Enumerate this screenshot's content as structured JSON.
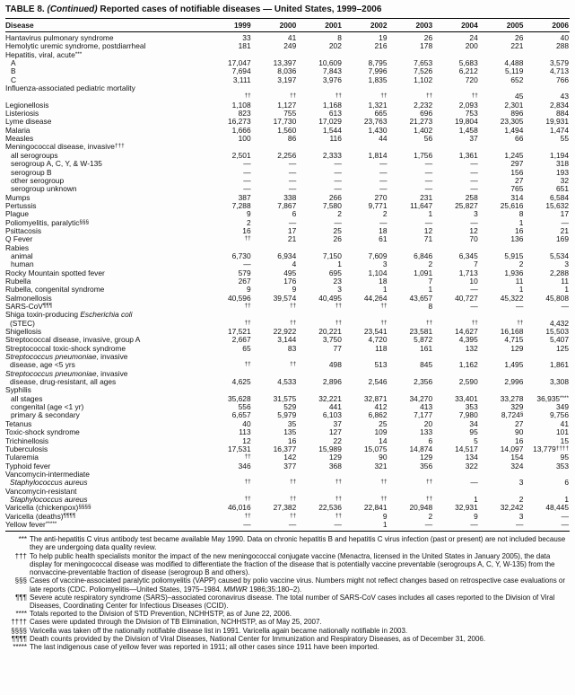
{
  "title": {
    "table_label": "TABLE 8.",
    "continued": "(Continued)",
    "text": "Reported cases of notifiable diseases — United States, 1999–2006"
  },
  "columns": [
    "Disease",
    "1999",
    "2000",
    "2001",
    "2002",
    "2003",
    "2004",
    "2005",
    "2006"
  ],
  "rows": [
    {
      "label": "Hantavirus pulmonary syndrome",
      "values": [
        "33",
        "41",
        "8",
        "19",
        "26",
        "24",
        "26",
        "40"
      ]
    },
    {
      "label": "Hemolytic uremic syndrome, postdiarrheal",
      "values": [
        "181",
        "249",
        "202",
        "216",
        "178",
        "200",
        "221",
        "288"
      ]
    },
    {
      "label": "Hepatitis, viral, acute",
      "sup": "***",
      "section": true
    },
    {
      "label": "A",
      "indent": 1,
      "values": [
        "17,047",
        "13,397",
        "10,609",
        "8,795",
        "7,653",
        "5,683",
        "4,488",
        "3,579"
      ]
    },
    {
      "label": "B",
      "indent": 1,
      "values": [
        "7,694",
        "8,036",
        "7,843",
        "7,996",
        "7,526",
        "6,212",
        "5,119",
        "4,713"
      ]
    },
    {
      "label": "C",
      "indent": 1,
      "values": [
        "3,111",
        "3,197",
        "3,976",
        "1,835",
        "1,102",
        "720",
        "652",
        "766"
      ]
    },
    {
      "label": "Influenza-associated pediatric mortality",
      "label2": "",
      "values": [
        "††",
        "††",
        "††",
        "††",
        "††",
        "††",
        "45",
        "43"
      ]
    },
    {
      "label": "Legionellosis",
      "values": [
        "1,108",
        "1,127",
        "1,168",
        "1,321",
        "2,232",
        "2,093",
        "2,301",
        "2,834"
      ]
    },
    {
      "label": "Listeriosis",
      "values": [
        "823",
        "755",
        "613",
        "665",
        "696",
        "753",
        "896",
        "884"
      ]
    },
    {
      "label": "Lyme disease",
      "values": [
        "16,273",
        "17,730",
        "17,029",
        "23,763",
        "21,273",
        "19,804",
        "23,305",
        "19,931"
      ]
    },
    {
      "label": "Malaria",
      "values": [
        "1,666",
        "1,560",
        "1,544",
        "1,430",
        "1,402",
        "1,458",
        "1,494",
        "1,474"
      ]
    },
    {
      "label": "Measles",
      "values": [
        "100",
        "86",
        "116",
        "44",
        "56",
        "37",
        "66",
        "55"
      ]
    },
    {
      "label": "Meningococcal disease, invasive",
      "sup": "†††",
      "section": true
    },
    {
      "label": "all serogroups",
      "indent": 1,
      "values": [
        "2,501",
        "2,256",
        "2,333",
        "1,814",
        "1,756",
        "1,361",
        "1,245",
        "1,194"
      ]
    },
    {
      "label": "serogroup A, C, Y, & W-135",
      "indent": 1,
      "values": [
        "—",
        "—",
        "—",
        "—",
        "—",
        "—",
        "297",
        "318"
      ]
    },
    {
      "label": "serogroup B",
      "indent": 1,
      "values": [
        "—",
        "—",
        "—",
        "—",
        "—",
        "—",
        "156",
        "193"
      ]
    },
    {
      "label": "other serogroup",
      "indent": 1,
      "values": [
        "—",
        "—",
        "—",
        "—",
        "—",
        "—",
        "27",
        "32"
      ]
    },
    {
      "label": "serogroup unknown",
      "indent": 1,
      "values": [
        "—",
        "—",
        "—",
        "—",
        "—",
        "—",
        "765",
        "651"
      ]
    },
    {
      "label": "Mumps",
      "values": [
        "387",
        "338",
        "266",
        "270",
        "231",
        "258",
        "314",
        "6,584"
      ]
    },
    {
      "label": "Pertussis",
      "values": [
        "7,288",
        "7,867",
        "7,580",
        "9,771",
        "11,647",
        "25,827",
        "25,616",
        "15,632"
      ]
    },
    {
      "label": "Plague",
      "values": [
        "9",
        "6",
        "2",
        "2",
        "1",
        "3",
        "8",
        "17"
      ]
    },
    {
      "label": "Poliomyelitis, paralytic",
      "sup": "§§§",
      "values": [
        "2",
        "—",
        "—",
        "—",
        "—",
        "—",
        "1",
        "—"
      ]
    },
    {
      "label": "Psittacosis",
      "values": [
        "16",
        "17",
        "25",
        "18",
        "12",
        "12",
        "16",
        "21"
      ]
    },
    {
      "label": "Q Fever",
      "values": [
        "††",
        "21",
        "26",
        "61",
        "71",
        "70",
        "136",
        "169"
      ]
    },
    {
      "label": "Rabies",
      "section": true
    },
    {
      "label": "animal",
      "indent": 1,
      "values": [
        "6,730",
        "6,934",
        "7,150",
        "7,609",
        "6,846",
        "6,345",
        "5,915",
        "5,534"
      ]
    },
    {
      "label": "human",
      "indent": 1,
      "values": [
        "—",
        "4",
        "1",
        "3",
        "2",
        "7",
        "2",
        "3"
      ]
    },
    {
      "label": "Rocky Mountain spotted fever",
      "values": [
        "579",
        "495",
        "695",
        "1,104",
        "1,091",
        "1,713",
        "1,936",
        "2,288"
      ]
    },
    {
      "label": "Rubella",
      "values": [
        "267",
        "176",
        "23",
        "18",
        "7",
        "10",
        "11",
        "11"
      ]
    },
    {
      "label": "Rubella, congenital syndrome",
      "values": [
        "9",
        "9",
        "3",
        "1",
        "1",
        "—",
        "1",
        "1"
      ]
    },
    {
      "label": "Salmonellosis",
      "values": [
        "40,596",
        "39,574",
        "40,495",
        "44,264",
        "43,657",
        "40,727",
        "45,322",
        "45,808"
      ]
    },
    {
      "label": "SARS-CoV",
      "sup": "¶¶¶",
      "values": [
        "††",
        "††",
        "††",
        "††",
        "8",
        "—",
        "—",
        "—"
      ]
    },
    {
      "label": "Shiga toxin-producing {i}Escherichia coli{/i}",
      "label2": "(STEC)",
      "values": [
        "††",
        "††",
        "††",
        "††",
        "††",
        "††",
        "††",
        "4,432"
      ]
    },
    {
      "label": "Shigellosis",
      "values": [
        "17,521",
        "22,922",
        "20,221",
        "23,541",
        "23,581",
        "14,627",
        "16,168",
        "15,503"
      ]
    },
    {
      "label": "Streptococcal disease, invasive, group A",
      "values": [
        "2,667",
        "3,144",
        "3,750",
        "4,720",
        "5,872",
        "4,395",
        "4,715",
        "5,407"
      ]
    },
    {
      "label": "Streptococcal toxic-shock syndrome",
      "values": [
        "65",
        "83",
        "77",
        "118",
        "161",
        "132",
        "129",
        "125"
      ]
    },
    {
      "label": "{i}Streptococcus pneumoniae{/i}, invasive",
      "label2": "disease, age <5 yrs",
      "values": [
        "††",
        "††",
        "498",
        "513",
        "845",
        "1,162",
        "1,495",
        "1,861"
      ]
    },
    {
      "label": "{i}Streptococcus pneumoniae{/i}, invasive",
      "label2": "disease, drug-resistant, all ages",
      "values": [
        "4,625",
        "4,533",
        "2,896",
        "2,546",
        "2,356",
        "2,590",
        "2,996",
        "3,308"
      ]
    },
    {
      "label": "Syphilis",
      "section": true
    },
    {
      "label": "all stages",
      "indent": 1,
      "values": [
        "35,628",
        "31,575",
        "32,221",
        "32,871",
        "34,270",
        "33,401",
        "33,278",
        "36,935^****"
      ]
    },
    {
      "label": "congenital (age <1 yr)",
      "indent": 1,
      "values": [
        "556",
        "529",
        "441",
        "412",
        "413",
        "353",
        "329",
        "349"
      ]
    },
    {
      "label": "primary & secondary",
      "indent": 1,
      "values": [
        "6,657",
        "5,979",
        "6,103",
        "6,862",
        "7,177",
        "7,980",
        "8,724^§",
        "9,756"
      ]
    },
    {
      "label": "Tetanus",
      "values": [
        "40",
        "35",
        "37",
        "25",
        "20",
        "34",
        "27",
        "41"
      ]
    },
    {
      "label": "Toxic-shock syndrome",
      "values": [
        "113",
        "135",
        "127",
        "109",
        "133",
        "95",
        "90",
        "101"
      ]
    },
    {
      "label": "Trichinellosis",
      "values": [
        "12",
        "16",
        "22",
        "14",
        "6",
        "5",
        "16",
        "15"
      ]
    },
    {
      "label": "Tuberculosis",
      "values": [
        "17,531",
        "16,377",
        "15,989",
        "15,075",
        "14,874",
        "14,517",
        "14,097",
        "13,779^††††"
      ]
    },
    {
      "label": "Tularemia",
      "values": [
        "††",
        "142",
        "129",
        "90",
        "129",
        "134",
        "154",
        "95"
      ]
    },
    {
      "label": "Typhoid fever",
      "values": [
        "346",
        "377",
        "368",
        "321",
        "356",
        "322",
        "324",
        "353"
      ]
    },
    {
      "label": "Vancomycin-intermediate",
      "label2": "{i}Staphylococcus aureus{/i}",
      "values": [
        "††",
        "††",
        "††",
        "††",
        "††",
        "—",
        "3",
        "6"
      ]
    },
    {
      "label": "Vancomycin-resistant",
      "label2": "{i}Staphylococcus aureus{/i}",
      "values": [
        "††",
        "††",
        "††",
        "††",
        "††",
        "1",
        "2",
        "1"
      ]
    },
    {
      "label": "Varicella (chickenpox)",
      "sup": "§§§§",
      "values": [
        "46,016",
        "27,382",
        "22,536",
        "22,841",
        "20,948",
        "32,931",
        "32,242",
        "48,445"
      ]
    },
    {
      "label": "Varicella (deaths)",
      "sup": "¶¶¶¶",
      "values": [
        "††",
        "††",
        "††",
        "9",
        "2",
        "9",
        "3",
        "—"
      ]
    },
    {
      "label": "Yellow fever",
      "sup": "*****",
      "values": [
        "—",
        "—",
        "—",
        "1",
        "—",
        "—",
        "—",
        "—"
      ]
    }
  ],
  "footnotes": [
    {
      "marker": "***",
      "text": "The anti-hepatitis C virus antibody test became available May 1990. Data on chronic hepatitis B and hepatitis C virus infection (past or present) are not included because they are undergoing data quality review."
    },
    {
      "marker": "†††",
      "text": "To help public health specialists monitor the impact of the new meningococcal conjugate vaccine (Menactra, licensed in the United States in January 2005), the data display for meningococcal disease was modified to differentiate the fraction of the disease that is potentially vaccine preventable (serogroups A, C, Y, W-135) from the nonvaccine-preventable fraction of disease (serogroup B and others)."
    },
    {
      "marker": "§§§",
      "text": "Cases of vaccine-associated paralytic poliomyelitis (VAPP) caused by polio vaccine virus. Numbers might not reflect changes based on retrospective case evaluations or late reports (CDC. Poliomyelitis—United States, 1975–1984. {i}MMWR{/i} 1986;35:180–2)."
    },
    {
      "marker": "¶¶¶",
      "text": "Severe acute respiratory syndrome (SARS)–associated coronavirus disease. The total number of SARS-CoV cases includes all cases reported to the Division of Viral Diseases, Coordinating Center for Infectious Diseases (CCID)."
    },
    {
      "marker": "****",
      "text": "Totals reported to the Division of STD Prevention, NCHHSTP, as of June 22, 2006."
    },
    {
      "marker": "††††",
      "text": "Cases were updated through the Division of TB Elimination, NCHHSTP, as of May 25, 2007."
    },
    {
      "marker": "§§§§",
      "text": "Varicella was taken off the nationally notifiable disease list in 1991. Varicella again became nationally notifiable in 2003."
    },
    {
      "marker": "¶¶¶¶",
      "text": "Death counts provided by the Division of Viral Diseases, National Center for Immunization and Respiratory Diseases, as of December 31, 2006."
    },
    {
      "marker": "*****",
      "text": "The last indigenous case of yellow fever was reported in 1911; all other cases since 1911 have been imported."
    }
  ]
}
